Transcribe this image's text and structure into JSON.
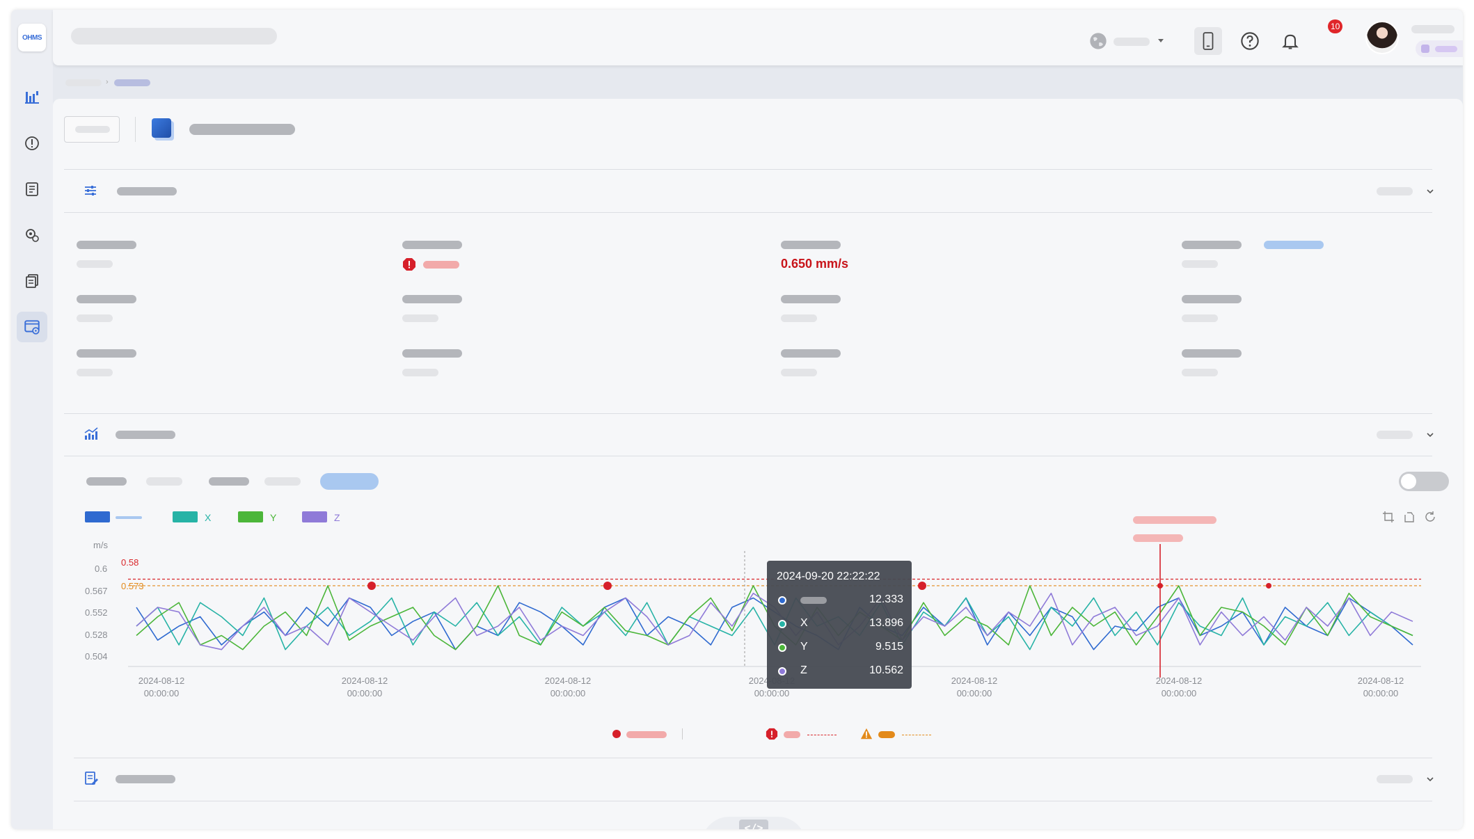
{
  "app": {
    "logo_text": "OHMS"
  },
  "header": {
    "notification_count": "10"
  },
  "measurement": {
    "value": "0.650 mm/s"
  },
  "chart_data": {
    "type": "line",
    "unit_label": "m/s",
    "yticks": [
      "0.6",
      "0.567",
      "0.552",
      "0.528",
      "0.504"
    ],
    "threshold_alarm": {
      "label": "0.58",
      "value": 0.58,
      "color": "#d9262a"
    },
    "threshold_warning": {
      "label": "0.573",
      "value": 0.573,
      "color": "#e38a1a"
    },
    "x_tick_labels": [
      [
        "2024-08-12",
        "00:00:00"
      ],
      [
        "2024-08-12",
        "00:00:00"
      ],
      [
        "2024-08-12",
        "00:00:00"
      ],
      [
        "2024-08-12",
        "00:00:00"
      ],
      [
        "2024-08-12",
        "00:00:00"
      ],
      [
        "2024-08-12",
        "00:00:00"
      ],
      [
        "2024-08-12",
        "00:00:00"
      ]
    ],
    "ylim": [
      0.49,
      0.61
    ],
    "series": [
      {
        "name": "",
        "color": "#2f6ad0",
        "values": [
          0.55,
          0.515,
          0.53,
          0.54,
          0.51,
          0.53,
          0.545,
          0.52,
          0.55,
          0.53,
          0.56,
          0.55,
          0.52,
          0.535,
          0.545,
          0.505,
          0.53,
          0.52,
          0.555,
          0.545,
          0.53,
          0.51,
          0.55,
          0.56,
          0.52,
          0.54,
          0.53,
          0.51,
          0.55,
          0.56,
          0.545,
          0.53,
          0.52,
          0.505,
          0.55,
          0.53,
          0.52,
          0.55,
          0.53,
          0.56,
          0.51,
          0.545,
          0.52,
          0.55,
          0.54,
          0.505,
          0.53,
          0.525,
          0.55,
          0.56,
          0.52,
          0.53,
          0.545,
          0.51,
          0.55,
          0.53,
          0.52,
          0.56,
          0.545,
          0.53,
          0.51
        ]
      },
      {
        "name": "X",
        "color": "#27b3a6",
        "values": [
          0.53,
          0.55,
          0.51,
          0.555,
          0.54,
          0.52,
          0.56,
          0.505,
          0.53,
          0.55,
          0.52,
          0.535,
          0.56,
          0.51,
          0.545,
          0.53,
          0.555,
          0.52,
          0.54,
          0.51,
          0.55,
          0.53,
          0.545,
          0.52,
          0.555,
          0.51,
          0.54,
          0.53,
          0.52,
          0.55,
          0.51,
          0.56,
          0.53,
          0.54,
          0.52,
          0.555,
          0.51,
          0.545,
          0.53,
          0.56,
          0.52,
          0.54,
          0.505,
          0.55,
          0.53,
          0.56,
          0.52,
          0.545,
          0.51,
          0.555,
          0.53,
          0.52,
          0.56,
          0.51,
          0.54,
          0.53,
          0.555,
          0.52,
          0.545,
          0.53,
          0.52
        ]
      },
      {
        "name": "Y",
        "color": "#4cb63a",
        "values": [
          0.52,
          0.54,
          0.555,
          0.51,
          0.52,
          0.505,
          0.53,
          0.545,
          0.52,
          0.573,
          0.515,
          0.53,
          0.54,
          0.55,
          0.52,
          0.505,
          0.53,
          0.573,
          0.52,
          0.51,
          0.545,
          0.53,
          0.55,
          0.525,
          0.52,
          0.51,
          0.54,
          0.56,
          0.525,
          0.573,
          0.53,
          0.51,
          0.55,
          0.52,
          0.545,
          0.53,
          0.515,
          0.555,
          0.52,
          0.54,
          0.53,
          0.51,
          0.573,
          0.52,
          0.55,
          0.53,
          0.545,
          0.51,
          0.54,
          0.573,
          0.52,
          0.55,
          0.545,
          0.53,
          0.51,
          0.55,
          0.52,
          0.565,
          0.54,
          0.53,
          0.52
        ]
      },
      {
        "name": "Z",
        "color": "#8f7ad8",
        "values": [
          0.53,
          0.55,
          0.545,
          0.51,
          0.505,
          0.53,
          0.55,
          0.52,
          0.53,
          0.51,
          0.56,
          0.545,
          0.53,
          0.515,
          0.54,
          0.56,
          0.52,
          0.53,
          0.55,
          0.515,
          0.53,
          0.52,
          0.545,
          0.56,
          0.54,
          0.51,
          0.52,
          0.555,
          0.53,
          0.565,
          0.55,
          0.52,
          0.545,
          0.51,
          0.53,
          0.56,
          0.515,
          0.54,
          0.53,
          0.55,
          0.52,
          0.545,
          0.53,
          0.565,
          0.51,
          0.54,
          0.55,
          0.52,
          0.53,
          0.56,
          0.51,
          0.545,
          0.52,
          0.54,
          0.515,
          0.55,
          0.53,
          0.56,
          0.52,
          0.545,
          0.535
        ]
      }
    ],
    "alarm_points": [
      0.573,
      0.573,
      0.573,
      0.573,
      0.573
    ],
    "tooltip": {
      "time": "2024-09-20 22:22:22",
      "rows": [
        {
          "name": "",
          "value": "12.333",
          "color": "#2f6ad0"
        },
        {
          "name": "X",
          "value": "13.896",
          "color": "#27b3a6"
        },
        {
          "name": "Y",
          "value": "9.515",
          "color": "#4cb63a"
        },
        {
          "name": "Z",
          "value": "10.562",
          "color": "#8f7ad8"
        }
      ]
    }
  },
  "icons": {
    "sidebar": [
      "dashboard-icon",
      "alert-icon",
      "report-icon",
      "settings-gear-icon",
      "documents-icon",
      "device-config-icon"
    ],
    "footer": "code-icon"
  }
}
